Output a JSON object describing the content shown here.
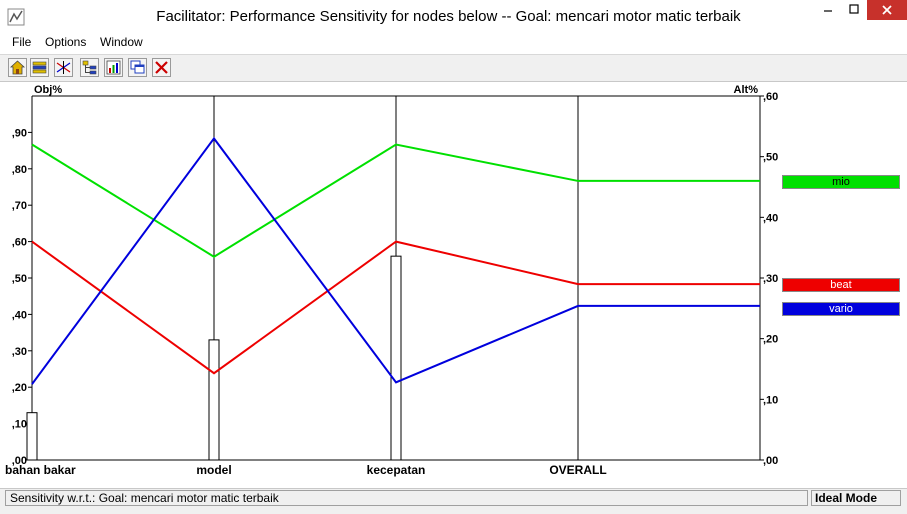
{
  "window": {
    "title": "Facilitator: Performance Sensitivity for nodes below -- Goal: mencari motor matic terbaik",
    "icons": [
      "app-icon",
      "minimize-icon",
      "maximize-icon",
      "close-icon"
    ]
  },
  "menu": {
    "items": [
      "File",
      "Options",
      "Window"
    ]
  },
  "toolbar": {
    "buttons": [
      "home-icon",
      "layers-icon",
      "sensitivity-icon",
      "tree-icon",
      "graph-icon",
      "windows-icon",
      "close-x-icon"
    ],
    "colors": {
      "close-x": "#cc0000"
    }
  },
  "chart_data": {
    "type": "line",
    "left_axis_label": "Obj%",
    "right_axis_label": "Alt%",
    "left_ticks": [
      ",00",
      ",10",
      ",20",
      ",30",
      ",40",
      ",50",
      ",60",
      ",70",
      ",80",
      ",90"
    ],
    "right_ticks": [
      ",00",
      ",10",
      ",20",
      ",30",
      ",40",
      ",50",
      ",60"
    ],
    "left_ylim": [
      0,
      1.0
    ],
    "right_ylim": [
      0,
      0.6
    ],
    "categories": [
      "bahan bakar",
      "model",
      "kecepatan",
      "OVERALL"
    ],
    "objective_bars": [
      0.13,
      0.33,
      0.56
    ],
    "series": [
      {
        "name": "mio",
        "color": "#00e000",
        "values": [
          0.52,
          0.335,
          0.52,
          0.46
        ]
      },
      {
        "name": "beat",
        "color": "#ee0000",
        "values": [
          0.36,
          0.143,
          0.36,
          0.29
        ]
      },
      {
        "name": "vario",
        "color": "#0000dd",
        "values": [
          0.125,
          0.53,
          0.128,
          0.254
        ]
      }
    ],
    "legend_placement": "right"
  },
  "status": {
    "left": "Sensitivity w.r.t.: Goal: mencari motor matic terbaik",
    "right": "Ideal Mode"
  }
}
